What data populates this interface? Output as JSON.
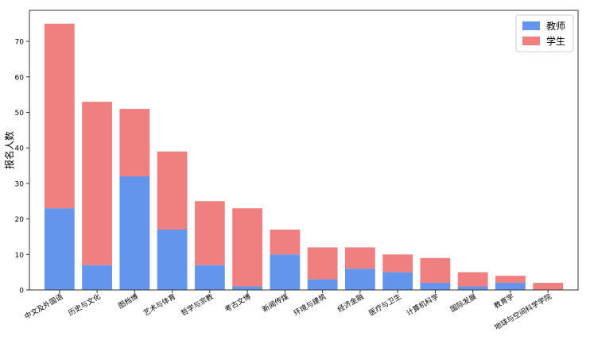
{
  "chart_data": {
    "type": "bar",
    "stacked": true,
    "title": "",
    "xlabel": "",
    "ylabel": "报名人数",
    "ylim": [
      0,
      78.75
    ],
    "yticks": [
      0,
      10,
      20,
      30,
      40,
      50,
      60,
      70
    ],
    "categories": [
      "中文及外国语",
      "历史与文化",
      "图档博",
      "艺术与体育",
      "哲学与宗教",
      "考古文博",
      "新闻传媒",
      "环境与建筑",
      "经济金融",
      "医疗与卫生",
      "计算机科学",
      "国际发展",
      "教育学",
      "地球与空间科学学院"
    ],
    "series": [
      {
        "name": "教师",
        "color": "#6495ed",
        "values": [
          23,
          7,
          32,
          17,
          7,
          1,
          10,
          3,
          6,
          5,
          2,
          1,
          2,
          0
        ]
      },
      {
        "name": "学生",
        "color": "#f08080",
        "values": [
          52,
          46,
          19,
          22,
          18,
          22,
          7,
          9,
          6,
          5,
          7,
          4,
          2,
          2
        ]
      }
    ],
    "legend_position": "top-right",
    "grid": false
  }
}
